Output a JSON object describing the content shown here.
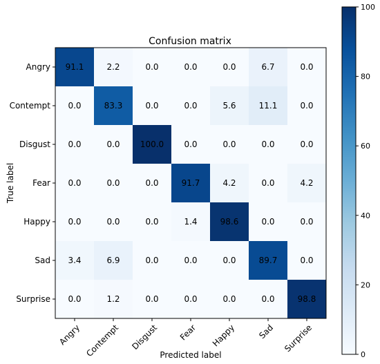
{
  "chart_data": {
    "type": "heatmap",
    "title": "Confusion matrix",
    "xlabel": "Predicted label",
    "ylabel": "True label",
    "x_categories": [
      "Angry",
      "Contempt",
      "Disgust",
      "Fear",
      "Happy",
      "Sad",
      "Surprise"
    ],
    "y_categories": [
      "Angry",
      "Contempt",
      "Disgust",
      "Fear",
      "Happy",
      "Sad",
      "Surprise"
    ],
    "values": [
      [
        91.1,
        2.2,
        0.0,
        0.0,
        0.0,
        6.7,
        0.0
      ],
      [
        0.0,
        83.3,
        0.0,
        0.0,
        5.6,
        11.1,
        0.0
      ],
      [
        0.0,
        0.0,
        100.0,
        0.0,
        0.0,
        0.0,
        0.0
      ],
      [
        0.0,
        0.0,
        0.0,
        91.7,
        4.2,
        0.0,
        4.2
      ],
      [
        0.0,
        0.0,
        0.0,
        1.4,
        98.6,
        0.0,
        0.0
      ],
      [
        3.4,
        6.9,
        0.0,
        0.0,
        0.0,
        89.7,
        0.0
      ],
      [
        0.0,
        1.2,
        0.0,
        0.0,
        0.0,
        0.0,
        98.8
      ]
    ],
    "value_range": [
      0,
      100
    ],
    "colorbar_ticks": [
      0,
      20,
      40,
      60,
      80,
      100
    ],
    "colormap": "Blues",
    "colorbar_position": "right",
    "grid": false
  }
}
